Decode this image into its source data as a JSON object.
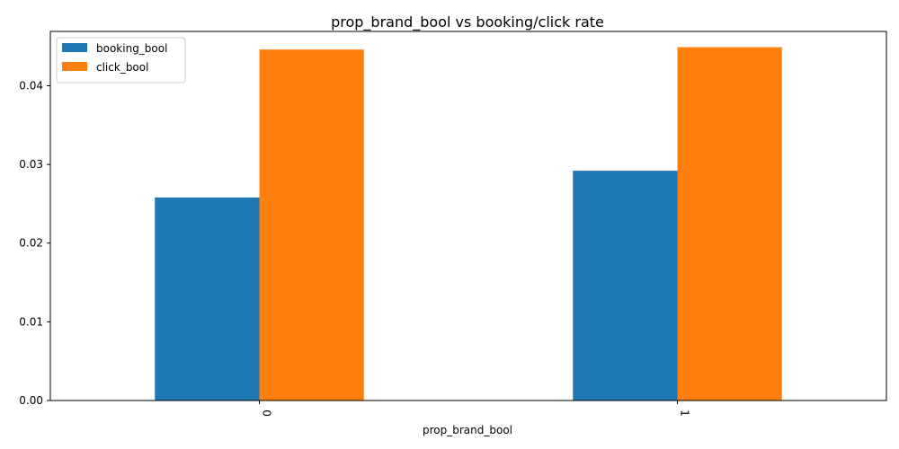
{
  "chart_data": {
    "type": "bar",
    "title": "prop_brand_bool vs booking/click rate",
    "xlabel": "prop_brand_bool",
    "ylabel": "",
    "categories": [
      "0",
      "1"
    ],
    "series": [
      {
        "name": "booking_bool",
        "values": [
          0.0258,
          0.0292
        ],
        "color": "#1f77b4"
      },
      {
        "name": "click_bool",
        "values": [
          0.0446,
          0.0449
        ],
        "color": "#ff7f0e"
      }
    ],
    "ylim": [
      0,
      0.0469
    ],
    "yticks": [
      0.0,
      0.01,
      0.02,
      0.03,
      0.04
    ],
    "ytick_labels": [
      "0.00",
      "0.01",
      "0.02",
      "0.03",
      "0.04"
    ],
    "grid": false,
    "legend_position": "top-left"
  }
}
